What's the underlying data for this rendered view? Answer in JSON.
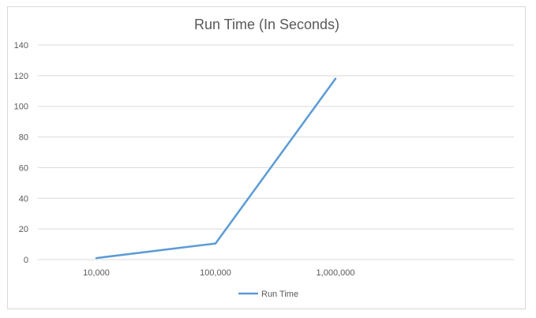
{
  "chart_data": {
    "type": "line",
    "title": "Run Time (In Seconds)",
    "xlabel": "",
    "ylabel": "",
    "categories": [
      "10,000",
      "100,000",
      "1,000,000"
    ],
    "series": [
      {
        "name": "Run Time",
        "values": [
          1,
          10.5,
          118
        ],
        "color": "#5b9bd5"
      }
    ],
    "ylim": [
      0,
      140
    ],
    "yticks": [
      0,
      20,
      40,
      60,
      80,
      100,
      120,
      140
    ],
    "grid": true,
    "legend": "bottom",
    "colors": {
      "grid": "#d9d9d9",
      "text": "#595959",
      "border": "#d9d9d9"
    }
  }
}
